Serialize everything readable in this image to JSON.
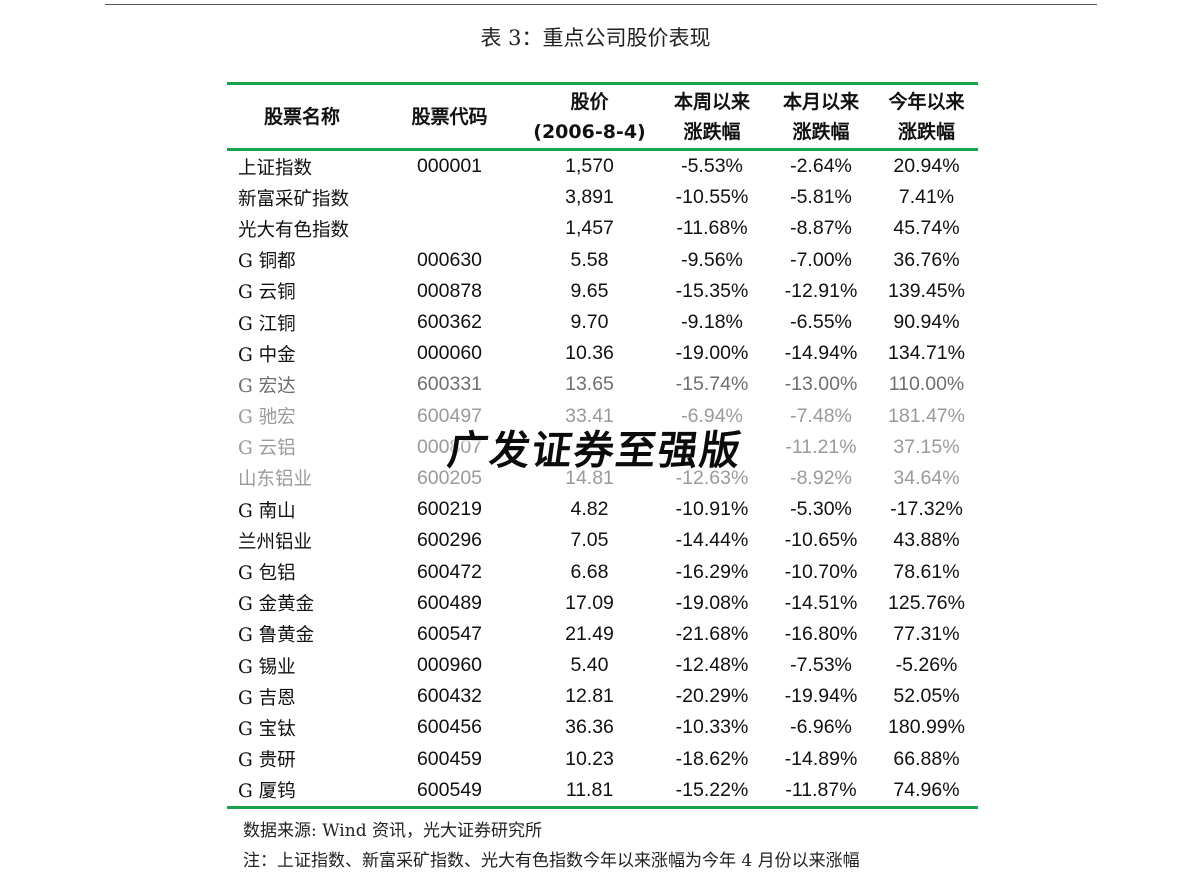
{
  "caption": "表 3：重点公司股价表现",
  "table": {
    "headers": [
      {
        "line1": "股票名称",
        "line2": ""
      },
      {
        "line1": "股票代码",
        "line2": ""
      },
      {
        "line1": "股价",
        "line2": "(2006-8-4)"
      },
      {
        "line1": "本周以来",
        "line2": "涨跌幅"
      },
      {
        "line1": "本月以来",
        "line2": "涨跌幅"
      },
      {
        "line1": "今年以来",
        "line2": "涨跌幅"
      }
    ],
    "rows": [
      {
        "name": "上证指数",
        "code": "000001",
        "price": "1,570",
        "week": "-5.53%",
        "month": "-2.64%",
        "ytd": "20.94%"
      },
      {
        "name": "新富采矿指数",
        "code": "",
        "price": "3,891",
        "week": "-10.55%",
        "month": "-5.81%",
        "ytd": "7.41%"
      },
      {
        "name": "光大有色指数",
        "code": "",
        "price": "1,457",
        "week": "-11.68%",
        "month": "-8.87%",
        "ytd": "45.74%"
      },
      {
        "name": "G 铜都",
        "code": "000630",
        "price": "5.58",
        "week": "-9.56%",
        "month": "-7.00%",
        "ytd": "36.76%"
      },
      {
        "name": "G 云铜",
        "code": "000878",
        "price": "9.65",
        "week": "-15.35%",
        "month": "-12.91%",
        "ytd": "139.45%"
      },
      {
        "name": "G 江铜",
        "code": "600362",
        "price": "9.70",
        "week": "-9.18%",
        "month": "-6.55%",
        "ytd": "90.94%"
      },
      {
        "name": "G 中金",
        "code": "000060",
        "price": "10.36",
        "week": "-19.00%",
        "month": "-14.94%",
        "ytd": "134.71%"
      },
      {
        "name": "G 宏达",
        "code": "600331",
        "price": "13.65",
        "week": "-15.74%",
        "month": "-13.00%",
        "ytd": "110.00%"
      },
      {
        "name": "G 驰宏",
        "code": "600497",
        "price": "33.41",
        "week": "-6.94%",
        "month": "-7.48%",
        "ytd": "181.47%"
      },
      {
        "name": "G 云铝",
        "code": "000807",
        "price": "",
        "week": "",
        "month": "-11.21%",
        "ytd": "37.15%"
      },
      {
        "name": "山东铝业",
        "code": "600205",
        "price": "14.81",
        "week": "-12.63%",
        "month": "-8.92%",
        "ytd": "34.64%"
      },
      {
        "name": "G 南山",
        "code": "600219",
        "price": "4.82",
        "week": "-10.91%",
        "month": "-5.30%",
        "ytd": "-17.32%"
      },
      {
        "name": "兰州铝业",
        "code": "600296",
        "price": "7.05",
        "week": "-14.44%",
        "month": "-10.65%",
        "ytd": "43.88%"
      },
      {
        "name": "G 包铝",
        "code": "600472",
        "price": "6.68",
        "week": "-16.29%",
        "month": "-10.70%",
        "ytd": "78.61%"
      },
      {
        "name": "G 金黄金",
        "code": "600489",
        "price": "17.09",
        "week": "-19.08%",
        "month": "-14.51%",
        "ytd": "125.76%"
      },
      {
        "name": "G 鲁黄金",
        "code": "600547",
        "price": "21.49",
        "week": "-21.68%",
        "month": "-16.80%",
        "ytd": "77.31%"
      },
      {
        "name": "G 锡业",
        "code": "000960",
        "price": "5.40",
        "week": "-12.48%",
        "month": "-7.53%",
        "ytd": "-5.26%"
      },
      {
        "name": "G 吉恩",
        "code": "600432",
        "price": "12.81",
        "week": "-20.29%",
        "month": "-19.94%",
        "ytd": "52.05%"
      },
      {
        "name": "G 宝钛",
        "code": "600456",
        "price": "36.36",
        "week": "-10.33%",
        "month": "-6.96%",
        "ytd": "180.99%"
      },
      {
        "name": "G 贵研",
        "code": "600459",
        "price": "10.23",
        "week": "-18.62%",
        "month": "-14.89%",
        "ytd": "66.88%"
      },
      {
        "name": "G 厦钨",
        "code": "600549",
        "price": "11.81",
        "week": "-15.22%",
        "month": "-11.87%",
        "ytd": "74.96%"
      }
    ]
  },
  "source_note": "数据来源: Wind 资讯，光大证券研究所",
  "remark_note": "注：上证指数、新富采矿指数、光大有色指数今年以来涨幅为今年 4 月份以来涨幅",
  "watermark": "广发证券至强版",
  "colors": {
    "rule_green": "#16a34a",
    "faded_text": "#9a9a9a"
  }
}
